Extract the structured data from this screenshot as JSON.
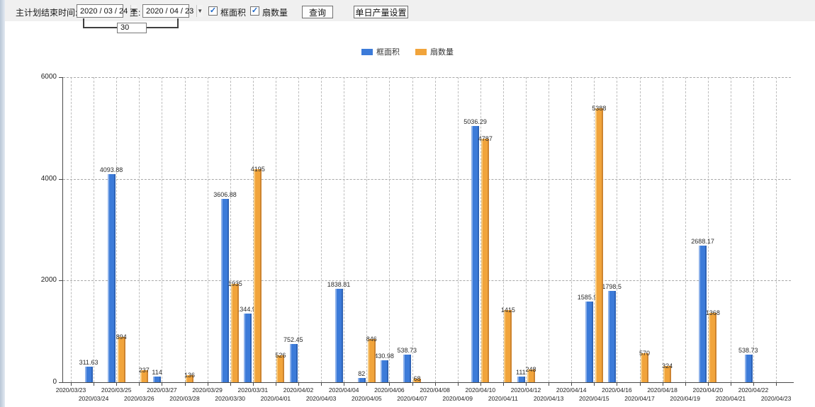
{
  "toolbar": {
    "plan_end_label": "主计划结束时间:",
    "date_from": "2020 / 03 / 24",
    "to_label": "至:",
    "date_to": "2020 / 04 / 23",
    "interval_days": "30",
    "checkbox_frame_area": {
      "checked": "✓",
      "label": "框面积"
    },
    "checkbox_fan_count": {
      "checked": "✓",
      "label": "扇数量"
    },
    "query_button": "查询",
    "daily_output_button": "单日产量设置"
  },
  "legend": {
    "items": [
      {
        "label": "框面积",
        "color": "#3c7bd9"
      },
      {
        "label": "扇数量",
        "color": "#f1a43b"
      }
    ]
  },
  "chart_data": {
    "type": "bar",
    "title": "",
    "xlabel": "",
    "ylabel": "",
    "ylim": [
      0,
      6000
    ],
    "yticks": [
      0,
      2000,
      4000,
      6000
    ],
    "grid": true,
    "legend_position": "top",
    "categories": [
      "2020/03/23",
      "2020/03/24",
      "2020/03/25",
      "2020/03/26",
      "2020/03/27",
      "2020/03/28",
      "2020/03/29",
      "2020/03/30",
      "2020/03/31",
      "2020/04/01",
      "2020/04/02",
      "2020/04/03",
      "2020/04/04",
      "2020/04/05",
      "2020/04/06",
      "2020/04/07",
      "2020/04/08",
      "2020/04/09",
      "2020/04/10",
      "2020/04/11",
      "2020/04/12",
      "2020/04/13",
      "2020/04/14",
      "2020/04/15",
      "2020/04/16",
      "2020/04/17",
      "2020/04/18",
      "2020/04/19",
      "2020/04/20",
      "2020/04/21",
      "2020/04/22",
      "2020/04/23"
    ],
    "series": [
      {
        "name": "框面积",
        "color": "#3c7bd9",
        "values": [
          null,
          311.63,
          4093.88,
          null,
          114,
          null,
          null,
          3606.88,
          1344.95,
          null,
          752.45,
          null,
          1838.81,
          82,
          430.98,
          538.73,
          null,
          null,
          5036.29,
          null,
          111,
          null,
          null,
          1585.96,
          1798.5,
          null,
          null,
          null,
          2688.17,
          null,
          538.73,
          null
        ]
      },
      {
        "name": "扇数量",
        "color": "#f1a43b",
        "values": [
          null,
          null,
          894,
          237,
          null,
          136,
          null,
          1935,
          4195,
          526,
          null,
          null,
          null,
          846,
          null,
          68,
          null,
          null,
          4787,
          1415,
          248,
          null,
          null,
          5388,
          null,
          570,
          324,
          null,
          1368,
          null,
          null,
          null
        ]
      }
    ]
  }
}
